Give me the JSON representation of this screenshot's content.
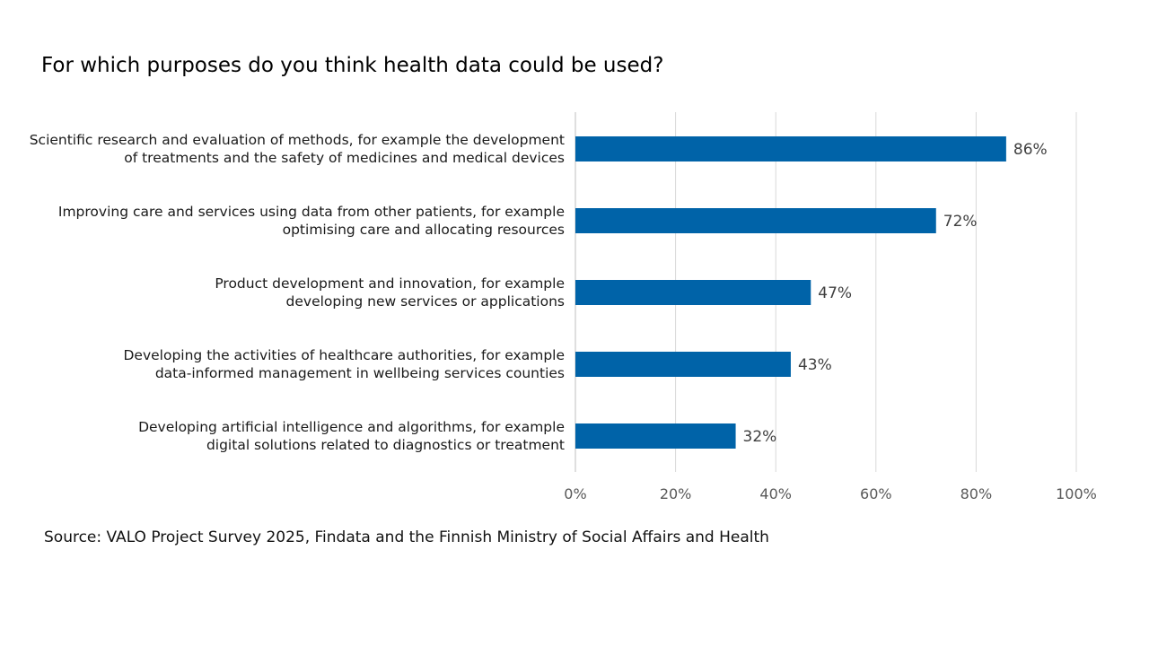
{
  "chart_data": {
    "type": "bar",
    "orientation": "horizontal",
    "title": "For which purposes do you think health data could be used?",
    "categories": [
      [
        "Scientific research and evaluation of methods, for example the development",
        "of treatments and the safety of medicines and medical devices"
      ],
      [
        "Improving care and services using data from other patients, for example",
        "optimising care and allocating resources"
      ],
      [
        "Product development and innovation, for example",
        "developing new services or applications"
      ],
      [
        "Developing the activities of healthcare authorities, for example",
        "data-informed management in wellbeing services counties"
      ],
      [
        "Developing artificial intelligence and algorithms, for example",
        "digital solutions related to diagnostics or treatment"
      ]
    ],
    "values": [
      86,
      72,
      47,
      43,
      32
    ],
    "value_labels": [
      "86%",
      "72%",
      "47%",
      "43%",
      "32%"
    ],
    "xlim": [
      0,
      100
    ],
    "x_ticks": [
      0,
      20,
      40,
      60,
      80,
      100
    ],
    "x_tick_labels": [
      "0%",
      "20%",
      "40%",
      "60%",
      "80%",
      "100%"
    ],
    "grid": true,
    "legend": "none",
    "bar_color": "#0063A8",
    "grid_color": "#d9d9d9"
  },
  "source": "Source: VALO Project Survey 2025, Findata and the Finnish Ministry of Social Affairs and Health"
}
